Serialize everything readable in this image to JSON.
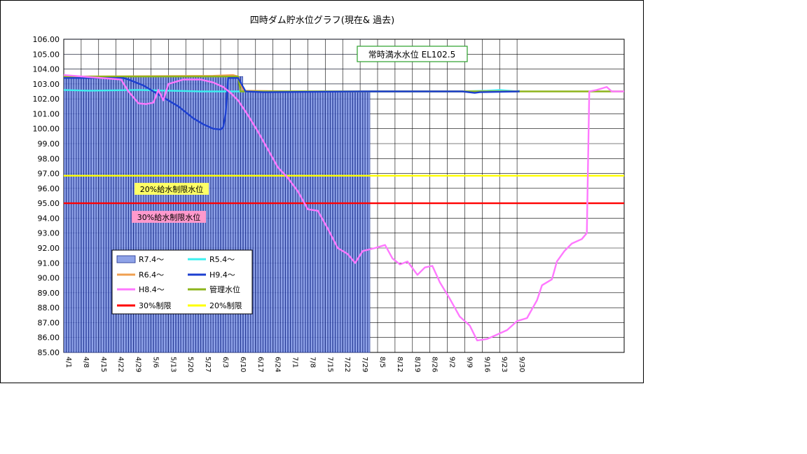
{
  "chart_data": {
    "type": "line",
    "title": "四時ダム貯水位グラフ(現在& 過去)",
    "xlabel": "",
    "ylabel": "",
    "ylim": [
      85.0,
      106.0
    ],
    "ytick_labels": [
      "85.00",
      "86.00",
      "87.00",
      "88.00",
      "89.00",
      "90.00",
      "91.00",
      "92.00",
      "93.00",
      "94.00",
      "95.00",
      "96.00",
      "97.00",
      "98.00",
      "99.00",
      "100.00",
      "101.00",
      "102.00",
      "103.00",
      "104.00",
      "105.00",
      "106.00"
    ],
    "xtick_labels": [
      "4/1",
      "4/8",
      "4/15",
      "4/22",
      "4/29",
      "5/6",
      "5/13",
      "5/20",
      "5/27",
      "6/3",
      "6/10",
      "6/17",
      "6/24",
      "7/1",
      "7/8",
      "7/15",
      "7/22",
      "7/29",
      "8/5",
      "8/12",
      "8/19",
      "8/26",
      "9/2",
      "9/9",
      "9/16",
      "9/23",
      "9/30"
    ],
    "grid": true,
    "legend_placement": "lower-left",
    "annotations": {
      "full_level": "常時満水水位 EL102.5",
      "limit20": "20%給水制限水位",
      "limit30": "30%給水制限水位"
    },
    "bars": {
      "name": "R7.4～",
      "color": "#8fa3e8",
      "days": 123,
      "values_note": "daily reservoir level bars",
      "base": 85.0,
      "level": 103.5,
      "later_level": 102.5
    },
    "series": [
      {
        "name": "R5.4～",
        "color": "#3cf0f0",
        "points": [
          [
            0,
            102.6
          ],
          [
            10,
            102.55
          ],
          [
            30,
            102.6
          ],
          [
            55,
            102.5
          ],
          [
            70,
            102.5
          ],
          [
            120,
            102.5
          ],
          [
            140,
            102.5
          ],
          [
            160,
            102.5
          ],
          [
            170,
            102.55
          ],
          [
            175,
            102.6
          ],
          [
            182,
            102.5
          ],
          [
            183,
            102.55
          ]
        ]
      },
      {
        "name": "R6.4～",
        "color": "#f0a050",
        "points": [
          [
            0,
            103.5
          ],
          [
            60,
            103.55
          ],
          [
            68,
            103.6
          ],
          [
            70,
            103.5
          ],
          [
            72,
            102.55
          ],
          [
            90,
            102.5
          ],
          [
            130,
            102.5
          ],
          [
            183,
            102.5
          ]
        ]
      },
      {
        "name": "H9.4～",
        "color": "#1c3fd0",
        "points": [
          [
            0,
            103.4
          ],
          [
            24,
            103.4
          ],
          [
            26,
            103.3
          ],
          [
            32,
            102.9
          ],
          [
            36,
            102.5
          ],
          [
            42,
            101.9
          ],
          [
            46,
            101.5
          ],
          [
            52,
            100.7
          ],
          [
            56,
            100.3
          ],
          [
            60,
            100.0
          ],
          [
            63,
            99.95
          ],
          [
            64,
            100.1
          ],
          [
            65,
            101.0
          ],
          [
            66,
            103.4
          ],
          [
            70,
            103.4
          ],
          [
            72,
            102.8
          ],
          [
            73,
            102.5
          ],
          [
            80,
            102.45
          ],
          [
            120,
            102.5
          ],
          [
            155,
            102.5
          ],
          [
            160,
            102.5
          ],
          [
            165,
            102.4
          ],
          [
            167,
            102.45
          ],
          [
            183,
            102.5
          ]
        ]
      },
      {
        "name": "H8.4～",
        "color": "#ff78ff",
        "points": [
          [
            0,
            103.6
          ],
          [
            23,
            103.3
          ],
          [
            26,
            102.5
          ],
          [
            30,
            101.7
          ],
          [
            33,
            101.65
          ],
          [
            36,
            101.75
          ],
          [
            38,
            102.6
          ],
          [
            40,
            101.9
          ],
          [
            42,
            103.0
          ],
          [
            48,
            103.3
          ],
          [
            55,
            103.3
          ],
          [
            60,
            103.1
          ],
          [
            64,
            102.8
          ],
          [
            67,
            102.4
          ],
          [
            70,
            101.9
          ],
          [
            74,
            100.9
          ],
          [
            78,
            99.8
          ],
          [
            82,
            98.6
          ],
          [
            86,
            97.4
          ],
          [
            90,
            96.7
          ],
          [
            94,
            95.8
          ],
          [
            98,
            94.6
          ],
          [
            102,
            94.5
          ],
          [
            106,
            93.3
          ],
          [
            110,
            92.0
          ],
          [
            114,
            91.6
          ],
          [
            117,
            91.0
          ],
          [
            120,
            91.8
          ],
          [
            125,
            92.0
          ],
          [
            129,
            92.2
          ],
          [
            132,
            91.3
          ],
          [
            135,
            90.9
          ],
          [
            138,
            91.1
          ],
          [
            142,
            90.2
          ],
          [
            145,
            90.7
          ],
          [
            148,
            90.8
          ],
          [
            151,
            89.7
          ],
          [
            155,
            88.6
          ],
          [
            159,
            87.4
          ],
          [
            163,
            86.8
          ],
          [
            166,
            85.8
          ],
          [
            170,
            85.9
          ],
          [
            174,
            86.2
          ],
          [
            178,
            86.5
          ],
          [
            182,
            87.1
          ],
          [
            186,
            87.3
          ],
          [
            190,
            88.5
          ],
          [
            192,
            89.5
          ],
          [
            196,
            89.9
          ],
          [
            198,
            91.1
          ],
          [
            201,
            91.8
          ],
          [
            204,
            92.3
          ],
          [
            208,
            92.6
          ],
          [
            210,
            93.0
          ],
          [
            211,
            102.5
          ],
          [
            214,
            102.6
          ],
          [
            218,
            102.8
          ],
          [
            220,
            102.5
          ],
          [
            225,
            102.5
          ]
        ]
      },
      {
        "name": "管理水位",
        "color": "#8db41c",
        "points": [
          [
            0,
            103.5
          ],
          [
            70,
            103.5
          ],
          [
            71,
            102.5
          ],
          [
            225,
            102.5
          ]
        ]
      },
      {
        "name": "30%制限",
        "color": "#ff0000",
        "points": [
          [
            0,
            95.0
          ],
          [
            225,
            95.0
          ]
        ]
      },
      {
        "name": "20%制限",
        "color": "#ffff00",
        "points": [
          [
            0,
            96.85
          ],
          [
            225,
            96.85
          ]
        ]
      }
    ],
    "legend": [
      "R7.4～",
      "R5.4～",
      "R6.4～",
      "H9.4～",
      "H8.4～",
      "管理水位",
      "30%制限",
      "20%制限"
    ]
  }
}
